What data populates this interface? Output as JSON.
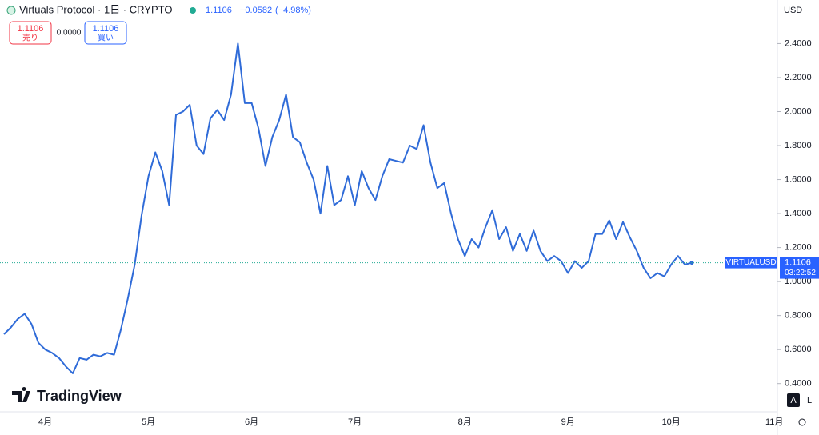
{
  "header": {
    "title": "Virtuals Protocol · 1日 · CRYPTO",
    "last": "1.1106",
    "change": "−0.0582",
    "change_pct": "(−4.98%)",
    "sell": {
      "price": "1.1106",
      "label": "売り"
    },
    "spread": "0.0000",
    "buy": {
      "price": "1.1106",
      "label": "買い"
    },
    "currency": "USD",
    "logo": "TradingView",
    "buttons": [
      "A",
      "L"
    ]
  },
  "price_label": {
    "symbol": "VIRTUALUSD",
    "price": "1.1106",
    "countdown": "03:22:52"
  },
  "chart_data": {
    "type": "line",
    "color": "#2f6bd8",
    "grid": false,
    "ylim": [
      0.234,
      2.656
    ],
    "yticks": [
      {
        "value": 0.4,
        "label": "0.4000"
      },
      {
        "value": 0.6,
        "label": "0.6000"
      },
      {
        "value": 0.8,
        "label": "0.8000"
      },
      {
        "value": 1.0,
        "label": "1.0000"
      },
      {
        "value": 1.2,
        "label": "1.2000"
      },
      {
        "value": 1.4,
        "label": "1.4000"
      },
      {
        "value": 1.6,
        "label": "1.6000"
      },
      {
        "value": 1.8,
        "label": "1.8000"
      },
      {
        "value": 2.0,
        "label": "2.0000"
      },
      {
        "value": 2.2,
        "label": "2.2000"
      },
      {
        "value": 2.4,
        "label": "2.4000"
      }
    ],
    "last_value": 1.1106,
    "categories": [
      null,
      null,
      null,
      null,
      null,
      null,
      "4月",
      null,
      null,
      null,
      null,
      null,
      null,
      null,
      null,
      null,
      null,
      null,
      null,
      null,
      null,
      "5月",
      null,
      null,
      null,
      null,
      null,
      null,
      null,
      null,
      null,
      null,
      null,
      null,
      null,
      null,
      "6月",
      null,
      null,
      null,
      null,
      null,
      null,
      null,
      null,
      null,
      null,
      null,
      null,
      null,
      null,
      "7月",
      null,
      null,
      null,
      null,
      null,
      null,
      null,
      null,
      null,
      null,
      null,
      null,
      null,
      null,
      null,
      "8月",
      null,
      null,
      null,
      null,
      null,
      null,
      null,
      null,
      null,
      null,
      null,
      null,
      null,
      null,
      "9月",
      null,
      null,
      null,
      null,
      null,
      null,
      null,
      null,
      null,
      null,
      null,
      null,
      null,
      null,
      "10月",
      null,
      null,
      null,
      null,
      null,
      null,
      null,
      null,
      null,
      null,
      null,
      null,
      null,
      null,
      "11月"
    ],
    "values": [
      0.69,
      0.73,
      0.78,
      0.81,
      0.75,
      0.64,
      0.6,
      0.58,
      0.55,
      0.5,
      0.46,
      0.55,
      0.54,
      0.57,
      0.56,
      0.58,
      0.57,
      0.72,
      0.9,
      1.1,
      1.39,
      1.62,
      1.76,
      1.65,
      1.45,
      1.98,
      2.0,
      2.04,
      1.8,
      1.75,
      1.96,
      2.01,
      1.95,
      2.1,
      2.4,
      2.05,
      2.05,
      1.9,
      1.68,
      1.85,
      1.95,
      2.1,
      1.85,
      1.82,
      1.7,
      1.6,
      1.4,
      1.68,
      1.45,
      1.48,
      1.62,
      1.45,
      1.65,
      1.55,
      1.48,
      1.62,
      1.72,
      1.71,
      1.7,
      1.8,
      1.78,
      1.92,
      1.7,
      1.55,
      1.58,
      1.4,
      1.25,
      1.15,
      1.25,
      1.2,
      1.32,
      1.42,
      1.25,
      1.32,
      1.18,
      1.28,
      1.18,
      1.3,
      1.18,
      1.12,
      1.15,
      1.12,
      1.05,
      1.12,
      1.08,
      1.12,
      1.28,
      1.28,
      1.36,
      1.25,
      1.35,
      1.26,
      1.18,
      1.08,
      1.02,
      1.05,
      1.03,
      1.1,
      1.15,
      1.1,
      1.1106,
      null,
      null,
      null,
      null,
      null,
      null,
      null,
      null,
      null,
      null,
      null,
      null
    ]
  }
}
